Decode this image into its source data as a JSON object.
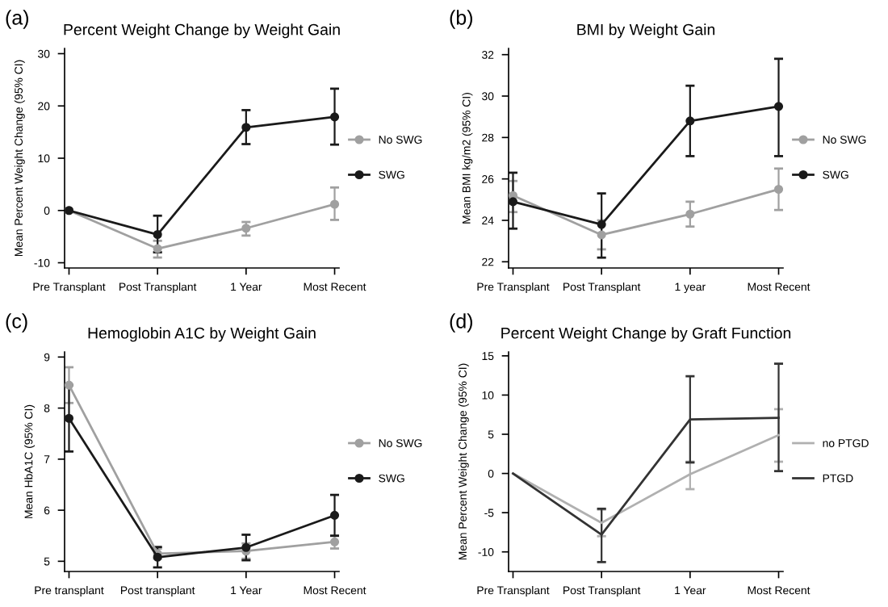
{
  "chart_data": [
    {
      "type": "line",
      "title": "Percent Weight Change by Weight Gain",
      "ylabel": "Mean Percent Weight Change (95% CI)",
      "annotations": [
        "(a)"
      ],
      "categories": [
        "Pre Transplant",
        "Post Transplant",
        "1 Year",
        "Most Recent"
      ],
      "ylim": [
        -11,
        31
      ],
      "yticks": [
        -10,
        0,
        10,
        20,
        30
      ],
      "legend": "right",
      "marker": "circle",
      "grid": false,
      "series": [
        {
          "name": "No SWG",
          "color": "#a0a0a0",
          "values": [
            0,
            -7.3,
            -3.4,
            1.2
          ],
          "errors": [
            null,
            [
              -9,
              -5.8
            ],
            [
              -4.8,
              -2.2
            ],
            [
              -1.8,
              4.4
            ]
          ]
        },
        {
          "name": "SWG",
          "color": "#1a1a1a",
          "values": [
            0,
            -4.6,
            15.9,
            17.9
          ],
          "errors": [
            null,
            [
              -8,
              -1
            ],
            [
              12.7,
              19.2
            ],
            [
              12.6,
              23.3
            ]
          ]
        }
      ]
    },
    {
      "type": "line",
      "title": "BMI by Weight Gain",
      "ylabel": "Mean BMI kg/m2 (95% CI)",
      "annotations": [
        "(b)"
      ],
      "categories": [
        "Pre Transplant",
        "Post Transplant",
        "1 year",
        "Most Recent"
      ],
      "ylim": [
        21.7,
        32.3
      ],
      "yticks": [
        22,
        24,
        26,
        28,
        30,
        32
      ],
      "legend": "right",
      "marker": "circle",
      "grid": false,
      "series": [
        {
          "name": "No SWG",
          "color": "#a0a0a0",
          "values": [
            25.2,
            23.3,
            24.3,
            25.5
          ],
          "errors": [
            [
              24.4,
              25.9
            ],
            [
              22.6,
              24.0
            ],
            [
              23.7,
              24.9
            ],
            [
              24.5,
              26.5
            ]
          ]
        },
        {
          "name": "SWG",
          "color": "#1a1a1a",
          "values": [
            24.9,
            23.8,
            28.8,
            29.5
          ],
          "errors": [
            [
              23.6,
              26.3
            ],
            [
              22.2,
              25.3
            ],
            [
              27.1,
              30.5
            ],
            [
              27.1,
              31.8
            ]
          ]
        }
      ]
    },
    {
      "type": "line",
      "title": "Hemoglobin A1C by Weight Gain",
      "ylabel": "Mean HbA1C (95% CI)",
      "annotations": [
        "(c)"
      ],
      "categories": [
        "Pre transplant",
        "Post transplant",
        "1 Year",
        "Most Recent"
      ],
      "ylim": [
        4.8,
        9.1
      ],
      "yticks": [
        5,
        6,
        7,
        8,
        9
      ],
      "legend": "right",
      "marker": "circle",
      "grid": false,
      "series": [
        {
          "name": "No SWG",
          "color": "#a0a0a0",
          "values": [
            8.45,
            5.15,
            5.2,
            5.38
          ],
          "errors": [
            [
              8.1,
              8.8
            ],
            [
              5.05,
              5.25
            ],
            [
              5.05,
              5.35
            ],
            [
              5.25,
              5.5
            ]
          ]
        },
        {
          "name": "SWG",
          "color": "#1a1a1a",
          "values": [
            7.8,
            5.08,
            5.27,
            5.9
          ],
          "errors": [
            [
              7.15,
              8.45
            ],
            [
              4.88,
              5.28
            ],
            [
              5.02,
              5.52
            ],
            [
              5.5,
              6.3
            ]
          ]
        }
      ]
    },
    {
      "type": "line",
      "title": "Percent Weight Change by Graft Function",
      "ylabel": "Mean Percent Weight Change (95% CI)",
      "annotations": [
        "(d)"
      ],
      "categories": [
        "Pre Transplant",
        "Post Transplant",
        "1 Year",
        "Most Recent"
      ],
      "ylim": [
        -12.5,
        15.5
      ],
      "yticks": [
        -10,
        -5,
        0,
        5,
        10,
        15
      ],
      "legend": "right",
      "marker": "none",
      "grid": false,
      "series": [
        {
          "name": "no PTGD",
          "color": "#b0b0b0",
          "values": [
            0,
            -6.3,
            -0.1,
            4.9
          ],
          "errors": [
            null,
            [
              -8,
              -4.6
            ],
            [
              -2,
              1.5
            ],
            [
              1.5,
              8.2
            ]
          ]
        },
        {
          "name": "PTGD",
          "color": "#333333",
          "values": [
            0,
            -7.8,
            6.9,
            7.1
          ],
          "errors": [
            null,
            [
              -11.3,
              -4.5
            ],
            [
              1.4,
              12.4
            ],
            [
              0.3,
              14
            ]
          ]
        }
      ]
    }
  ]
}
